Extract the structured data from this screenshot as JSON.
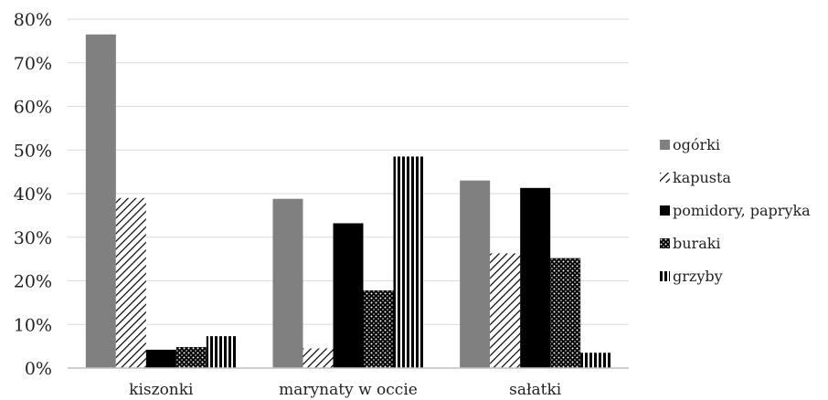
{
  "chart_data": {
    "type": "bar",
    "categories": [
      "kiszonki",
      "marynaty w occie",
      "sałatki"
    ],
    "series": [
      {
        "name": "ogórki",
        "values": [
          76.5,
          38.8,
          43.0
        ],
        "pattern": "solid-gray",
        "color": "#808080"
      },
      {
        "name": "kapusta",
        "values": [
          39.0,
          4.5,
          26.3
        ],
        "pattern": "diagonal-hatch",
        "color": "#000000"
      },
      {
        "name": "pomidory, papryka",
        "values": [
          4.2,
          33.2,
          41.3
        ],
        "pattern": "solid-black",
        "color": "#000000"
      },
      {
        "name": "buraki",
        "values": [
          4.8,
          17.8,
          25.2
        ],
        "pattern": "dotted",
        "color": "#000000"
      },
      {
        "name": "grzyby",
        "values": [
          7.3,
          48.5,
          3.5
        ],
        "pattern": "vertical-stripes",
        "color": "#000000"
      }
    ],
    "yticks": [
      "0%",
      "10%",
      "20%",
      "30%",
      "40%",
      "50%",
      "60%",
      "70%",
      "80%"
    ],
    "ylim": [
      0,
      80
    ],
    "grid": true,
    "legend": "right"
  }
}
